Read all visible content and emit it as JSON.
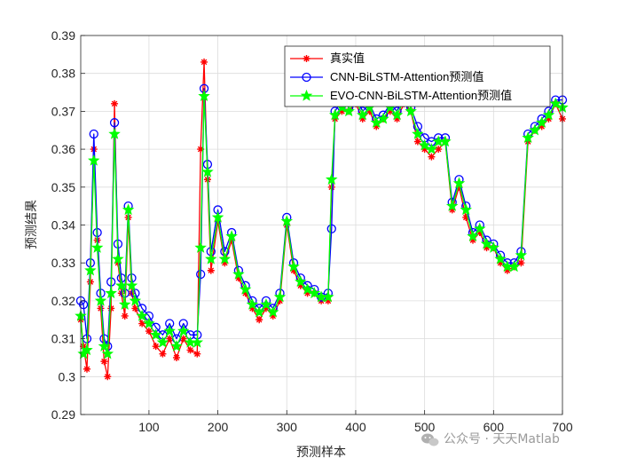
{
  "chart_data": {
    "type": "line",
    "title": "",
    "xlabel": "预测样本",
    "ylabel": "预测结果",
    "xlim": [
      1,
      700
    ],
    "ylim": [
      0.29,
      0.39
    ],
    "xticks": [
      100,
      200,
      300,
      400,
      500,
      600,
      700
    ],
    "xtick_labels": [
      "100",
      "200",
      "300",
      "400",
      "500",
      "600",
      "700"
    ],
    "yticks": [
      0.29,
      0.3,
      0.31,
      0.32,
      0.33,
      0.34,
      0.35,
      0.36,
      0.37,
      0.38,
      0.39
    ],
    "ytick_labels": [
      "0.29",
      "0.3",
      "0.31",
      "0.32",
      "0.33",
      "0.34",
      "0.35",
      "0.36",
      "0.37",
      "0.38",
      "0.39"
    ],
    "grid": true,
    "legend_position": "top-right",
    "x": [
      1,
      5,
      10,
      15,
      20,
      25,
      30,
      35,
      40,
      45,
      50,
      55,
      60,
      65,
      70,
      75,
      80,
      90,
      100,
      110,
      120,
      130,
      140,
      150,
      160,
      170,
      175,
      180,
      185,
      190,
      200,
      210,
      220,
      230,
      240,
      250,
      260,
      270,
      280,
      290,
      300,
      310,
      320,
      330,
      340,
      350,
      360,
      365,
      370,
      380,
      390,
      400,
      410,
      420,
      430,
      440,
      450,
      460,
      470,
      480,
      490,
      500,
      510,
      520,
      530,
      540,
      550,
      560,
      570,
      580,
      590,
      600,
      610,
      620,
      630,
      640,
      650,
      660,
      670,
      680,
      690,
      700
    ],
    "series": [
      {
        "name": "真实值",
        "color": "#ff0000",
        "marker": "asterisk",
        "values": [
          0.315,
          0.308,
          0.302,
          0.325,
          0.36,
          0.336,
          0.318,
          0.304,
          0.3,
          0.318,
          0.372,
          0.33,
          0.322,
          0.316,
          0.342,
          0.322,
          0.318,
          0.314,
          0.312,
          0.308,
          0.306,
          0.31,
          0.305,
          0.31,
          0.307,
          0.306,
          0.36,
          0.383,
          0.352,
          0.328,
          0.341,
          0.33,
          0.336,
          0.326,
          0.322,
          0.318,
          0.315,
          0.318,
          0.316,
          0.32,
          0.34,
          0.328,
          0.324,
          0.322,
          0.322,
          0.32,
          0.32,
          0.35,
          0.368,
          0.37,
          0.37,
          0.372,
          0.368,
          0.37,
          0.366,
          0.368,
          0.37,
          0.368,
          0.372,
          0.37,
          0.362,
          0.36,
          0.358,
          0.36,
          0.362,
          0.344,
          0.35,
          0.342,
          0.336,
          0.338,
          0.334,
          0.334,
          0.33,
          0.328,
          0.329,
          0.33,
          0.362,
          0.365,
          0.366,
          0.368,
          0.372,
          0.368
        ]
      },
      {
        "name": "CNN-BiLSTM-Attention预测值",
        "color": "#0000ff",
        "marker": "circle",
        "values": [
          0.32,
          0.319,
          0.31,
          0.33,
          0.364,
          0.338,
          0.322,
          0.31,
          0.308,
          0.325,
          0.367,
          0.335,
          0.326,
          0.322,
          0.345,
          0.326,
          0.322,
          0.318,
          0.316,
          0.313,
          0.311,
          0.314,
          0.31,
          0.314,
          0.311,
          0.311,
          0.327,
          0.376,
          0.356,
          0.333,
          0.344,
          0.333,
          0.338,
          0.328,
          0.324,
          0.32,
          0.318,
          0.32,
          0.318,
          0.322,
          0.342,
          0.33,
          0.326,
          0.324,
          0.323,
          0.321,
          0.322,
          0.339,
          0.37,
          0.373,
          0.371,
          0.374,
          0.37,
          0.372,
          0.368,
          0.369,
          0.372,
          0.37,
          0.374,
          0.371,
          0.366,
          0.363,
          0.362,
          0.363,
          0.363,
          0.346,
          0.352,
          0.345,
          0.338,
          0.34,
          0.336,
          0.335,
          0.332,
          0.33,
          0.33,
          0.333,
          0.364,
          0.366,
          0.368,
          0.37,
          0.373,
          0.373
        ]
      },
      {
        "name": "EVO-CNN-BiLSTM-Attention预测值",
        "color": "#00ff00",
        "marker": "star",
        "values": [
          0.316,
          0.306,
          0.307,
          0.328,
          0.357,
          0.334,
          0.32,
          0.308,
          0.306,
          0.322,
          0.364,
          0.331,
          0.324,
          0.319,
          0.344,
          0.324,
          0.32,
          0.316,
          0.314,
          0.311,
          0.309,
          0.312,
          0.308,
          0.312,
          0.309,
          0.309,
          0.334,
          0.374,
          0.354,
          0.331,
          0.342,
          0.331,
          0.337,
          0.327,
          0.323,
          0.319,
          0.317,
          0.319,
          0.317,
          0.321,
          0.341,
          0.329,
          0.325,
          0.323,
          0.322,
          0.321,
          0.321,
          0.352,
          0.369,
          0.371,
          0.37,
          0.373,
          0.369,
          0.371,
          0.367,
          0.368,
          0.371,
          0.369,
          0.373,
          0.37,
          0.364,
          0.361,
          0.36,
          0.362,
          0.362,
          0.345,
          0.351,
          0.344,
          0.337,
          0.339,
          0.335,
          0.334,
          0.331,
          0.329,
          0.329,
          0.332,
          0.363,
          0.365,
          0.367,
          0.369,
          0.372,
          0.371
        ]
      }
    ]
  },
  "watermark": {
    "text": "公众号 · 天天Matlab",
    "icon": "wechat-icon"
  }
}
